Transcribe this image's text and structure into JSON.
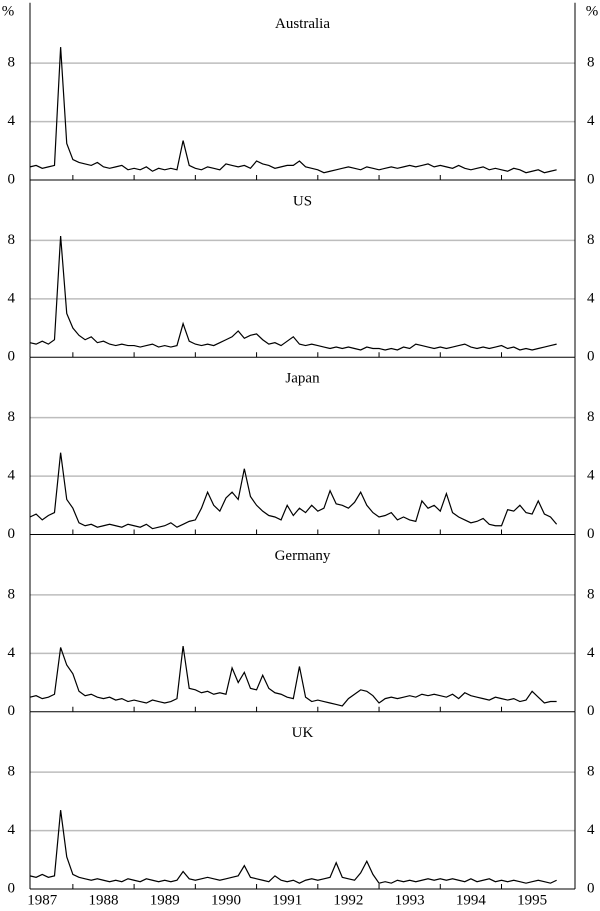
{
  "chart_data": [
    {
      "type": "line",
      "title": "Australia",
      "unit": "%",
      "color": "#000000",
      "grid": true,
      "xlim": [
        1987.3,
        1996.2
      ],
      "xticks": [
        1987,
        1988,
        1989,
        1990,
        1991,
        1992,
        1993,
        1994,
        1995
      ],
      "ylim": [
        0,
        12
      ],
      "yticks": [
        0,
        4,
        8
      ],
      "x": [
        1987.3,
        1987.4,
        1987.5,
        1987.6,
        1987.7,
        1987.8,
        1987.9,
        1988.0,
        1988.1,
        1988.2,
        1988.3,
        1988.4,
        1988.5,
        1988.6,
        1988.7,
        1988.8,
        1988.9,
        1989.0,
        1989.1,
        1989.2,
        1989.3,
        1989.4,
        1989.5,
        1989.6,
        1989.7,
        1989.8,
        1989.9,
        1990.0,
        1990.1,
        1990.2,
        1990.3,
        1990.4,
        1990.5,
        1990.6,
        1990.7,
        1990.8,
        1990.9,
        1991.0,
        1991.1,
        1991.2,
        1991.3,
        1991.4,
        1991.5,
        1991.6,
        1991.7,
        1991.8,
        1991.9,
        1992.0,
        1992.1,
        1992.2,
        1992.3,
        1992.4,
        1992.5,
        1992.6,
        1992.7,
        1992.8,
        1992.9,
        1993.0,
        1993.1,
        1993.2,
        1993.3,
        1993.4,
        1993.5,
        1993.6,
        1993.7,
        1993.8,
        1993.9,
        1994.0,
        1994.1,
        1994.2,
        1994.3,
        1994.4,
        1994.5,
        1994.6,
        1994.7,
        1994.8,
        1994.9,
        1995.0,
        1995.1,
        1995.2,
        1995.3,
        1995.4,
        1995.5,
        1995.6,
        1995.7,
        1995.8,
        1995.9
      ],
      "values": [
        0.9,
        1.0,
        0.8,
        0.9,
        1.0,
        9.1,
        2.5,
        1.4,
        1.2,
        1.1,
        1.0,
        1.2,
        0.9,
        0.8,
        0.9,
        1.0,
        0.7,
        0.8,
        0.7,
        0.9,
        0.6,
        0.8,
        0.7,
        0.8,
        0.7,
        2.7,
        1.0,
        0.8,
        0.7,
        0.9,
        0.8,
        0.7,
        1.1,
        1.0,
        0.9,
        1.0,
        0.8,
        1.3,
        1.1,
        1.0,
        0.8,
        0.9,
        1.0,
        1.0,
        1.3,
        0.9,
        0.8,
        0.7,
        0.5,
        0.6,
        0.7,
        0.8,
        0.9,
        0.8,
        0.7,
        0.9,
        0.8,
        0.7,
        0.8,
        0.9,
        0.8,
        0.9,
        1.0,
        0.9,
        1.0,
        1.1,
        0.9,
        1.0,
        0.9,
        0.8,
        1.0,
        0.8,
        0.7,
        0.8,
        0.9,
        0.7,
        0.8,
        0.7,
        0.6,
        0.8,
        0.7,
        0.5,
        0.6,
        0.7,
        0.5,
        0.6,
        0.7
      ]
    },
    {
      "type": "line",
      "title": "US",
      "color": "#000000",
      "grid": true,
      "xlim": [
        1987.3,
        1996.2
      ],
      "xticks": [
        1987,
        1988,
        1989,
        1990,
        1991,
        1992,
        1993,
        1994,
        1995
      ],
      "ylim": [
        0,
        12
      ],
      "yticks": [
        0,
        4,
        8
      ],
      "x": [
        1987.3,
        1987.4,
        1987.5,
        1987.6,
        1987.7,
        1987.8,
        1987.9,
        1988.0,
        1988.1,
        1988.2,
        1988.3,
        1988.4,
        1988.5,
        1988.6,
        1988.7,
        1988.8,
        1988.9,
        1989.0,
        1989.1,
        1989.2,
        1989.3,
        1989.4,
        1989.5,
        1989.6,
        1989.7,
        1989.8,
        1989.9,
        1990.0,
        1990.1,
        1990.2,
        1990.3,
        1990.4,
        1990.5,
        1990.6,
        1990.7,
        1990.8,
        1990.9,
        1991.0,
        1991.1,
        1991.2,
        1991.3,
        1991.4,
        1991.5,
        1991.6,
        1991.7,
        1991.8,
        1991.9,
        1992.0,
        1992.1,
        1992.2,
        1992.3,
        1992.4,
        1992.5,
        1992.6,
        1992.7,
        1992.8,
        1992.9,
        1993.0,
        1993.1,
        1993.2,
        1993.3,
        1993.4,
        1993.5,
        1993.6,
        1993.7,
        1993.8,
        1993.9,
        1994.0,
        1994.1,
        1994.2,
        1994.3,
        1994.4,
        1994.5,
        1994.6,
        1994.7,
        1994.8,
        1994.9,
        1995.0,
        1995.1,
        1995.2,
        1995.3,
        1995.4,
        1995.5,
        1995.6,
        1995.7,
        1995.8,
        1995.9
      ],
      "values": [
        1.0,
        0.9,
        1.1,
        0.9,
        1.2,
        8.3,
        3.0,
        2.0,
        1.5,
        1.2,
        1.4,
        1.0,
        1.1,
        0.9,
        0.8,
        0.9,
        0.8,
        0.8,
        0.7,
        0.8,
        0.9,
        0.7,
        0.8,
        0.7,
        0.8,
        2.3,
        1.1,
        0.9,
        0.8,
        0.9,
        0.8,
        1.0,
        1.2,
        1.4,
        1.8,
        1.3,
        1.5,
        1.6,
        1.2,
        0.9,
        1.0,
        0.8,
        1.1,
        1.4,
        0.9,
        0.8,
        0.9,
        0.8,
        0.7,
        0.6,
        0.7,
        0.6,
        0.7,
        0.6,
        0.5,
        0.7,
        0.6,
        0.6,
        0.5,
        0.6,
        0.5,
        0.7,
        0.6,
        0.9,
        0.8,
        0.7,
        0.6,
        0.7,
        0.6,
        0.7,
        0.8,
        0.9,
        0.7,
        0.6,
        0.7,
        0.6,
        0.7,
        0.8,
        0.6,
        0.7,
        0.5,
        0.6,
        0.5,
        0.6,
        0.7,
        0.8,
        0.9
      ]
    },
    {
      "type": "line",
      "title": "Japan",
      "color": "#000000",
      "grid": true,
      "xlim": [
        1987.3,
        1996.2
      ],
      "xticks": [
        1987,
        1988,
        1989,
        1990,
        1991,
        1992,
        1993,
        1994,
        1995
      ],
      "ylim": [
        0,
        12
      ],
      "yticks": [
        0,
        4,
        8
      ],
      "x": [
        1987.3,
        1987.4,
        1987.5,
        1987.6,
        1987.7,
        1987.8,
        1987.9,
        1988.0,
        1988.1,
        1988.2,
        1988.3,
        1988.4,
        1988.5,
        1988.6,
        1988.7,
        1988.8,
        1988.9,
        1989.0,
        1989.1,
        1989.2,
        1989.3,
        1989.4,
        1989.5,
        1989.6,
        1989.7,
        1989.8,
        1989.9,
        1990.0,
        1990.1,
        1990.2,
        1990.3,
        1990.4,
        1990.5,
        1990.6,
        1990.7,
        1990.8,
        1990.9,
        1991.0,
        1991.1,
        1991.2,
        1991.3,
        1991.4,
        1991.5,
        1991.6,
        1991.7,
        1991.8,
        1991.9,
        1992.0,
        1992.1,
        1992.2,
        1992.3,
        1992.4,
        1992.5,
        1992.6,
        1992.7,
        1992.8,
        1992.9,
        1993.0,
        1993.1,
        1993.2,
        1993.3,
        1993.4,
        1993.5,
        1993.6,
        1993.7,
        1993.8,
        1993.9,
        1994.0,
        1994.1,
        1994.2,
        1994.3,
        1994.4,
        1994.5,
        1994.6,
        1994.7,
        1994.8,
        1994.9,
        1995.0,
        1995.1,
        1995.2,
        1995.3,
        1995.4,
        1995.5,
        1995.6,
        1995.7,
        1995.8,
        1995.9
      ],
      "values": [
        1.2,
        1.4,
        1.0,
        1.3,
        1.5,
        5.6,
        2.4,
        1.8,
        0.8,
        0.6,
        0.7,
        0.5,
        0.6,
        0.7,
        0.6,
        0.5,
        0.7,
        0.6,
        0.5,
        0.7,
        0.4,
        0.5,
        0.6,
        0.8,
        0.5,
        0.7,
        0.9,
        1.0,
        1.8,
        2.9,
        2.0,
        1.6,
        2.5,
        2.9,
        2.4,
        4.5,
        2.6,
        2.0,
        1.6,
        1.3,
        1.2,
        1.0,
        2.0,
        1.3,
        1.8,
        1.5,
        2.0,
        1.6,
        1.8,
        3.0,
        2.1,
        2.0,
        1.8,
        2.2,
        2.9,
        2.0,
        1.5,
        1.2,
        1.3,
        1.5,
        1.0,
        1.2,
        1.0,
        0.9,
        2.3,
        1.8,
        2.0,
        1.6,
        2.8,
        1.5,
        1.2,
        1.0,
        0.8,
        0.9,
        1.1,
        0.7,
        0.6,
        0.6,
        1.7,
        1.6,
        2.0,
        1.5,
        1.4,
        2.3,
        1.4,
        1.2,
        0.7
      ]
    },
    {
      "type": "line",
      "title": "Germany",
      "color": "#000000",
      "grid": true,
      "xlim": [
        1987.3,
        1996.2
      ],
      "xticks": [
        1987,
        1988,
        1989,
        1990,
        1991,
        1992,
        1993,
        1994,
        1995
      ],
      "ylim": [
        0,
        12
      ],
      "yticks": [
        0,
        4,
        8
      ],
      "x": [
        1987.3,
        1987.4,
        1987.5,
        1987.6,
        1987.7,
        1987.8,
        1987.9,
        1988.0,
        1988.1,
        1988.2,
        1988.3,
        1988.4,
        1988.5,
        1988.6,
        1988.7,
        1988.8,
        1988.9,
        1989.0,
        1989.1,
        1989.2,
        1989.3,
        1989.4,
        1989.5,
        1989.6,
        1989.7,
        1989.8,
        1989.9,
        1990.0,
        1990.1,
        1990.2,
        1990.3,
        1990.4,
        1990.5,
        1990.6,
        1990.7,
        1990.8,
        1990.9,
        1991.0,
        1991.1,
        1991.2,
        1991.3,
        1991.4,
        1991.5,
        1991.6,
        1991.7,
        1991.8,
        1991.9,
        1992.0,
        1992.1,
        1992.2,
        1992.3,
        1992.4,
        1992.5,
        1992.6,
        1992.7,
        1992.8,
        1992.9,
        1993.0,
        1993.1,
        1993.2,
        1993.3,
        1993.4,
        1993.5,
        1993.6,
        1993.7,
        1993.8,
        1993.9,
        1994.0,
        1994.1,
        1994.2,
        1994.3,
        1994.4,
        1994.5,
        1994.6,
        1994.7,
        1994.8,
        1994.9,
        1995.0,
        1995.1,
        1995.2,
        1995.3,
        1995.4,
        1995.5,
        1995.6,
        1995.7,
        1995.8,
        1995.9
      ],
      "values": [
        1.0,
        1.1,
        0.9,
        1.0,
        1.2,
        4.4,
        3.2,
        2.6,
        1.4,
        1.1,
        1.2,
        1.0,
        0.9,
        1.0,
        0.8,
        0.9,
        0.7,
        0.8,
        0.7,
        0.6,
        0.8,
        0.7,
        0.6,
        0.7,
        0.9,
        4.5,
        1.6,
        1.5,
        1.3,
        1.4,
        1.2,
        1.3,
        1.2,
        3.0,
        2.0,
        2.7,
        1.6,
        1.5,
        2.5,
        1.6,
        1.3,
        1.2,
        1.0,
        0.9,
        3.1,
        1.0,
        0.7,
        0.8,
        0.7,
        0.6,
        0.5,
        0.4,
        0.9,
        1.2,
        1.5,
        1.4,
        1.1,
        0.6,
        0.9,
        1.0,
        0.9,
        1.0,
        1.1,
        1.0,
        1.2,
        1.1,
        1.2,
        1.1,
        1.0,
        1.2,
        0.9,
        1.3,
        1.1,
        1.0,
        0.9,
        0.8,
        1.0,
        0.9,
        0.8,
        0.9,
        0.7,
        0.8,
        1.4,
        1.0,
        0.6,
        0.7,
        0.7
      ]
    },
    {
      "type": "line",
      "title": "UK",
      "color": "#000000",
      "grid": true,
      "xlim": [
        1987.3,
        1996.2
      ],
      "xticks": [
        1987,
        1988,
        1989,
        1990,
        1991,
        1992,
        1993,
        1994,
        1995
      ],
      "ylim": [
        0,
        12
      ],
      "yticks": [
        0,
        4,
        8
      ],
      "x": [
        1987.3,
        1987.4,
        1987.5,
        1987.6,
        1987.7,
        1987.8,
        1987.9,
        1988.0,
        1988.1,
        1988.2,
        1988.3,
        1988.4,
        1988.5,
        1988.6,
        1988.7,
        1988.8,
        1988.9,
        1989.0,
        1989.1,
        1989.2,
        1989.3,
        1989.4,
        1989.5,
        1989.6,
        1989.7,
        1989.8,
        1989.9,
        1990.0,
        1990.1,
        1990.2,
        1990.3,
        1990.4,
        1990.5,
        1990.6,
        1990.7,
        1990.8,
        1990.9,
        1991.0,
        1991.1,
        1991.2,
        1991.3,
        1991.4,
        1991.5,
        1991.6,
        1991.7,
        1991.8,
        1991.9,
        1992.0,
        1992.1,
        1992.2,
        1992.3,
        1992.4,
        1992.5,
        1992.6,
        1992.7,
        1992.8,
        1992.9,
        1993.0,
        1993.1,
        1993.2,
        1993.3,
        1993.4,
        1993.5,
        1993.6,
        1993.7,
        1993.8,
        1993.9,
        1994.0,
        1994.1,
        1994.2,
        1994.3,
        1994.4,
        1994.5,
        1994.6,
        1994.7,
        1994.8,
        1994.9,
        1995.0,
        1995.1,
        1995.2,
        1995.3,
        1995.4,
        1995.5,
        1995.6,
        1995.7,
        1995.8,
        1995.9
      ],
      "values": [
        0.9,
        0.8,
        1.0,
        0.8,
        0.9,
        5.4,
        2.2,
        1.0,
        0.8,
        0.7,
        0.6,
        0.7,
        0.6,
        0.5,
        0.6,
        0.5,
        0.7,
        0.6,
        0.5,
        0.7,
        0.6,
        0.5,
        0.6,
        0.5,
        0.6,
        1.2,
        0.7,
        0.6,
        0.7,
        0.8,
        0.7,
        0.6,
        0.7,
        0.8,
        0.9,
        1.6,
        0.8,
        0.7,
        0.6,
        0.5,
        0.9,
        0.6,
        0.5,
        0.6,
        0.4,
        0.6,
        0.7,
        0.6,
        0.7,
        0.8,
        1.8,
        0.8,
        0.7,
        0.6,
        1.1,
        1.9,
        1.0,
        0.4,
        0.5,
        0.4,
        0.6,
        0.5,
        0.6,
        0.5,
        0.6,
        0.7,
        0.6,
        0.7,
        0.6,
        0.7,
        0.6,
        0.5,
        0.7,
        0.5,
        0.6,
        0.7,
        0.5,
        0.6,
        0.5,
        0.6,
        0.5,
        0.4,
        0.5,
        0.6,
        0.5,
        0.4,
        0.6
      ]
    }
  ]
}
